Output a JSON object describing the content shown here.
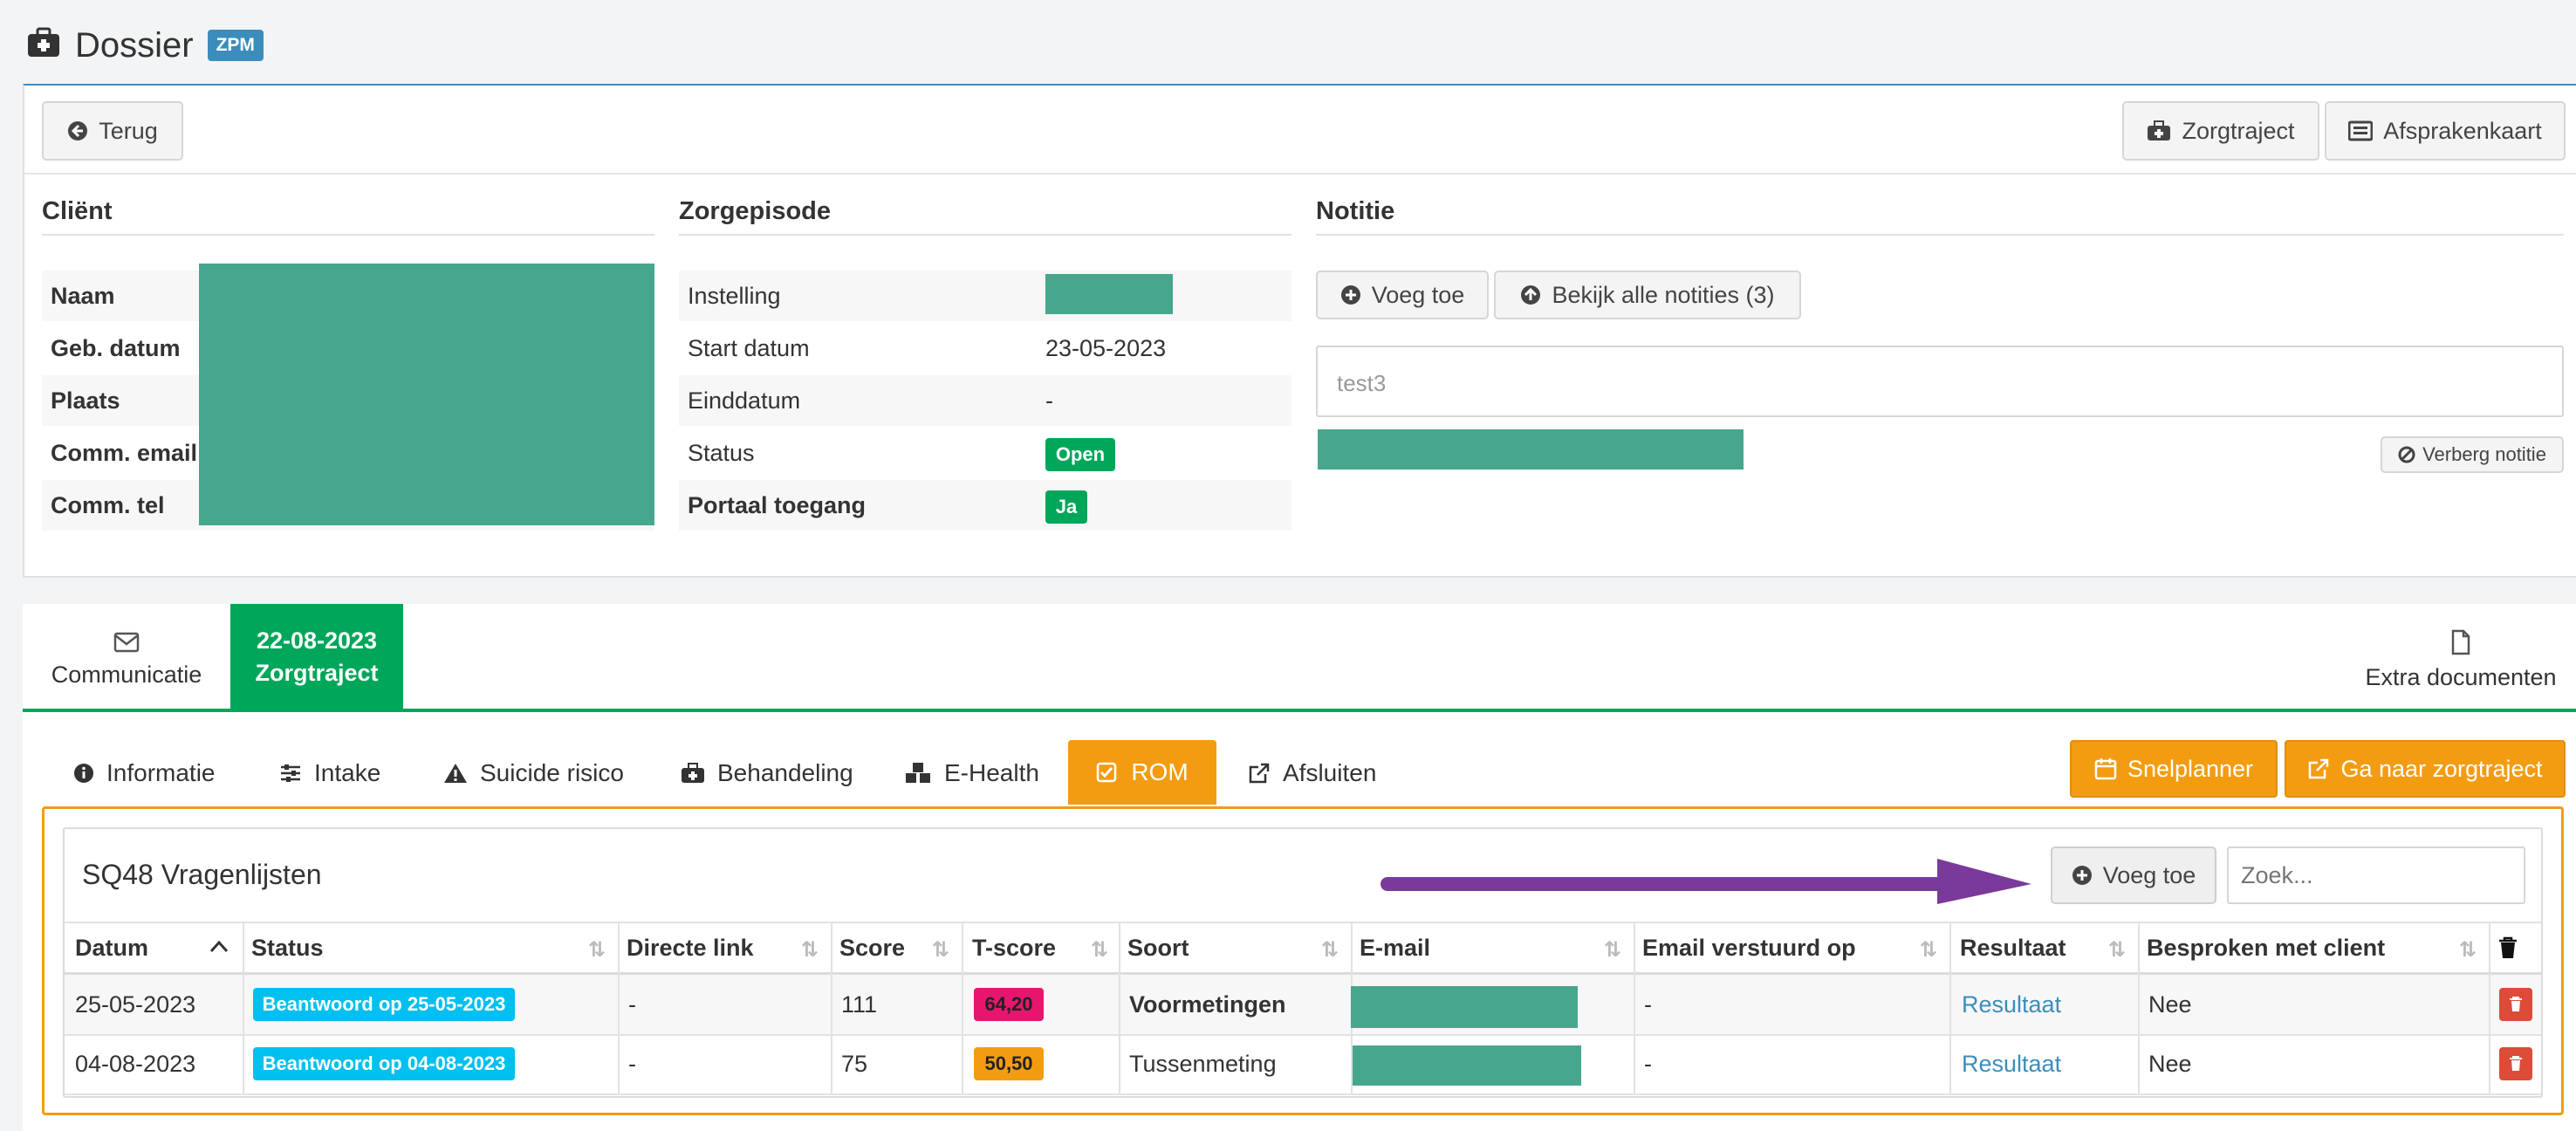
{
  "page": {
    "title": "Dossier",
    "badge": "ZPM"
  },
  "toolbar": {
    "back_label": "Terug",
    "zorgtraject_label": "Zorgtraject",
    "afsprakenkaart_label": "Afsprakenkaart"
  },
  "client": {
    "heading": "Cliënt",
    "fields": [
      {
        "label": "Naam"
      },
      {
        "label": "Geb. datum"
      },
      {
        "label": "Plaats"
      },
      {
        "label": "Comm. email"
      },
      {
        "label": "Comm. tel"
      }
    ]
  },
  "episode": {
    "heading": "Zorgepisode",
    "instelling_label": "Instelling",
    "start_label": "Start datum",
    "start_value": "23-05-2023",
    "eind_label": "Einddatum",
    "eind_value": "-",
    "status_label": "Status",
    "status_value": "Open",
    "portaal_label": "Portaal toegang",
    "portaal_value": "Ja"
  },
  "notes": {
    "heading": "Notitie",
    "add_label": "Voeg toe",
    "view_all_label": "Bekijk alle notities (3)",
    "note_text": "test3",
    "hide_label": "Verberg notitie"
  },
  "main_tabs": {
    "communicatie": "Communicatie",
    "zorgtraject_date": "22-08-2023",
    "zorgtraject": "Zorgtraject",
    "extra_docs": "Extra documenten"
  },
  "sub_tabs": {
    "informatie": "Informatie",
    "intake": "Intake",
    "suicide": "Suicide risico",
    "behandeling": "Behandeling",
    "ehealth": "E-Health",
    "rom": "ROM",
    "afsluiten": "Afsluiten"
  },
  "actions": {
    "snelplanner": "Snelplanner",
    "ga_naar": "Ga naar zorgtraject"
  },
  "questionnaire": {
    "title": "SQ48 Vragenlijsten",
    "add_label": "Voeg toe",
    "search_placeholder": "Zoek...",
    "columns": {
      "datum": "Datum",
      "status": "Status",
      "directe_link": "Directe link",
      "score": "Score",
      "tscore": "T-score",
      "soort": "Soort",
      "email": "E-mail",
      "verstuurd": "Email verstuurd op",
      "resultaat": "Resultaat",
      "besproken": "Besproken met client"
    },
    "rows": [
      {
        "datum": "25-05-2023",
        "status": "Beantwoord op 25-05-2023",
        "link": "-",
        "score": "111",
        "tscore": "64,20",
        "soort": "Voormetingen",
        "verstuurd": "-",
        "resultaat": "Resultaat",
        "besproken": "Nee"
      },
      {
        "datum": "04-08-2023",
        "status": "Beantwoord op 04-08-2023",
        "link": "-",
        "score": "75",
        "tscore": "50,50",
        "soort": "Tussenmeting",
        "verstuurd": "-",
        "resultaat": "Resultaat",
        "besproken": "Nee"
      }
    ]
  },
  "colors": {
    "teal_redaction": "#46a68e",
    "green": "#00a65a",
    "orange": "#f39c12",
    "cyan": "#00c0ef",
    "pink": "#e6166e",
    "red": "#dd4b39",
    "purple_arrow": "#7a3a9a",
    "badge_blue": "#3c8dbc"
  }
}
